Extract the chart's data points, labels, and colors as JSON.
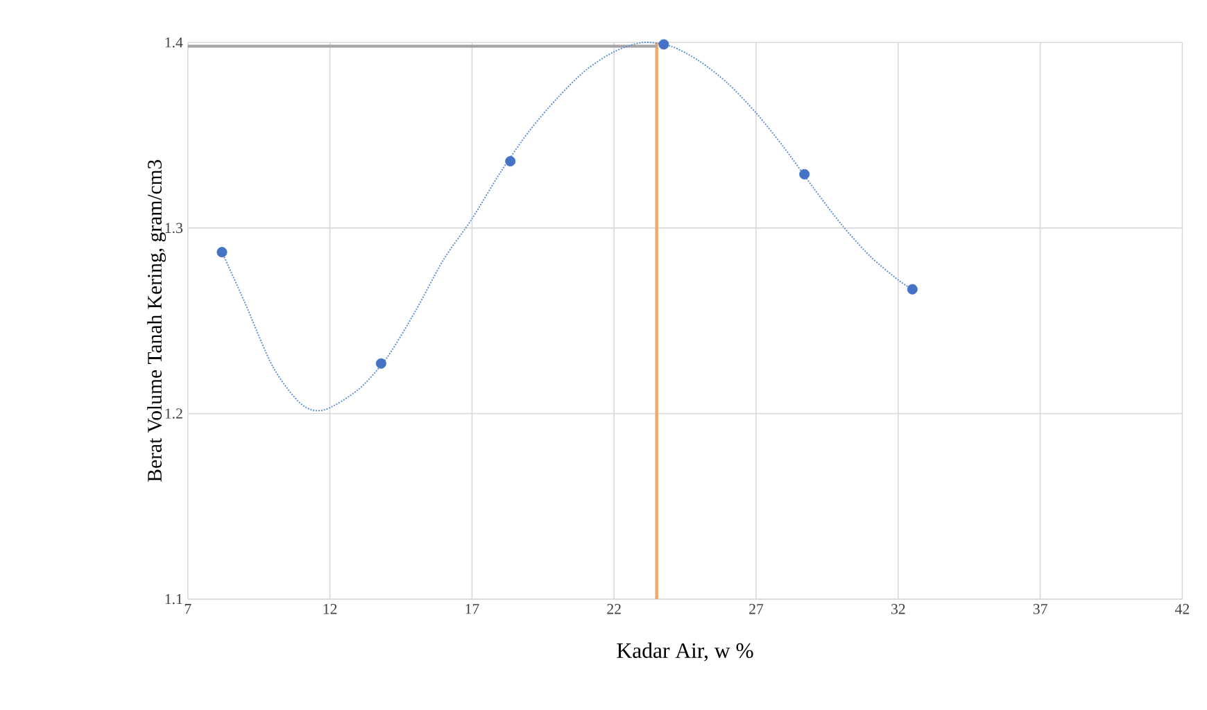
{
  "chart_data": {
    "type": "scatter",
    "xlabel": "Kadar Air, w %",
    "ylabel": "Berat Volume Tanah Kering, gram/cm3",
    "xlim": [
      7,
      42
    ],
    "xticks": [
      7,
      12,
      17,
      22,
      27,
      32,
      37,
      42
    ],
    "ylim": [
      1.1,
      1.4
    ],
    "yticks": [
      1.1,
      1.2,
      1.3,
      1.4
    ],
    "grid": true,
    "series": [
      {
        "color": "#4472c4",
        "marker": "circle",
        "x": [
          8.2,
          13.8,
          18.35,
          23.75,
          28.7,
          32.5
        ],
        "values": [
          1.287,
          1.227,
          1.336,
          1.399,
          1.329,
          1.267
        ]
      },
      {
        "type": "line",
        "color": "#5b8fd6",
        "line_style": "dotted",
        "marker": "none",
        "x": [
          8.2,
          9,
          10,
          11,
          11.8,
          13,
          14,
          15,
          16,
          17,
          18,
          19,
          20,
          21,
          22,
          23,
          24,
          25,
          26,
          27,
          28,
          29,
          30,
          31,
          32,
          32.5
        ],
        "values": [
          1.287,
          1.26,
          1.225,
          1.205,
          1.202,
          1.213,
          1.23,
          1.255,
          1.283,
          1.305,
          1.33,
          1.352,
          1.37,
          1.385,
          1.395,
          1.4,
          1.398,
          1.39,
          1.378,
          1.362,
          1.343,
          1.322,
          1.302,
          1.285,
          1.272,
          1.267
        ]
      }
    ],
    "ref_lines": [
      {
        "axis": "x",
        "value": 23.5,
        "color": "#f4a46c"
      },
      {
        "axis": "y",
        "value": 1.398,
        "color": "#a6a6a6"
      }
    ]
  }
}
